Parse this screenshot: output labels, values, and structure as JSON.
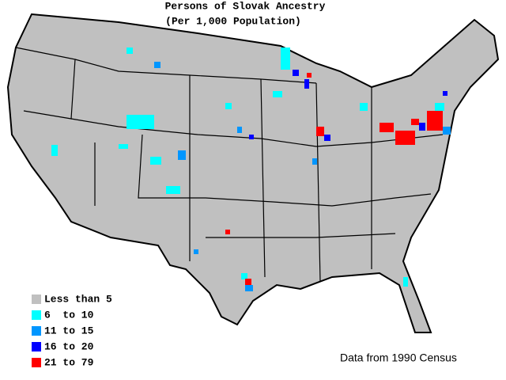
{
  "title": "Persons of Slovak Ancestry",
  "subtitle": "(Per 1,000 Population)",
  "legend": [
    {
      "label": "Less than 5",
      "color": "#c0c0c0"
    },
    {
      "label": "6  to 10",
      "color": "#00ffff"
    },
    {
      "label": "11 to 15",
      "color": "#0096ff"
    },
    {
      "label": "16 to 20",
      "color": "#0000ff"
    },
    {
      "label": "21 to 79",
      "color": "#ff0000"
    }
  ],
  "source": "Data from 1990 Census"
}
